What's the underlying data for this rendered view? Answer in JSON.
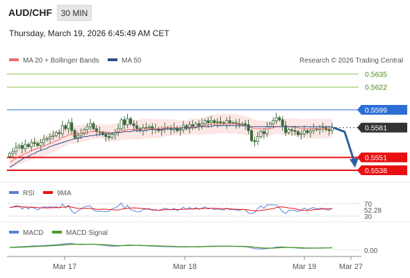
{
  "header": {
    "symbol": "AUD/CHF",
    "timeframe": "30 MIN",
    "datetime": "Thursday, March 19, 2026 6:45:49 AM CET"
  },
  "legend": {
    "ma20": "MA 20 + Bollinger Bands",
    "ma50": "MA 50",
    "rsi": "RSI",
    "rsi_ma": "9MA",
    "macd": "MACD",
    "macd_signal": "MACD Signal"
  },
  "copyright": "Research © 2026 Trading Central",
  "colors": {
    "ma20": "#f06a6a",
    "ma50": "#2c4f8a",
    "resistance_green": "#8bc34a",
    "pivot_blue": "#2d6ed6",
    "support_red": "#e81010",
    "last_price_bg": "#333333",
    "candle": "#3a6a3a",
    "rsi_line": "#5b7fd6",
    "macd_line": "#5b7fd6",
    "macd_signal_line": "#4a9a2a"
  },
  "chart_data": [
    {
      "type": "candlestick",
      "x_ticks": [
        "Mar 17",
        "Mar 18",
        "Mar 19",
        "Mar 27"
      ],
      "y_range": [
        0.553,
        0.5645
      ],
      "levels": [
        {
          "value": 0.5635,
          "label": "0.5635",
          "kind": "resistance"
        },
        {
          "value": 0.5622,
          "label": "0.5622",
          "kind": "resistance"
        },
        {
          "value": 0.5599,
          "label": "0.5599",
          "kind": "pivot"
        },
        {
          "value": 0.5581,
          "label": "0.5581",
          "kind": "last"
        },
        {
          "value": 0.5551,
          "label": "0.5551",
          "kind": "support"
        },
        {
          "value": 0.5538,
          "label": "0.5538",
          "kind": "support"
        }
      ],
      "close": [
        0.5555,
        0.5557,
        0.5561,
        0.5563,
        0.556,
        0.5564,
        0.5562,
        0.5566,
        0.5565,
        0.5563,
        0.5566,
        0.5569,
        0.557,
        0.5572,
        0.5573,
        0.5576,
        0.5575,
        0.5583,
        0.558,
        0.5586,
        0.5578,
        0.5571,
        0.5573,
        0.5575,
        0.5579,
        0.5582,
        0.5585,
        0.558,
        0.5577,
        0.5576,
        0.5574,
        0.5572,
        0.5571,
        0.5574,
        0.5576,
        0.558,
        0.5589,
        0.5584,
        0.559,
        0.5585,
        0.5583,
        0.558,
        0.5578,
        0.5581,
        0.5581,
        0.5582,
        0.5579,
        0.558,
        0.5578,
        0.5579,
        0.5581,
        0.558,
        0.5579,
        0.5581,
        0.5578,
        0.5579,
        0.5583,
        0.558,
        0.5584,
        0.5582,
        0.5585,
        0.5583,
        0.5585,
        0.5588,
        0.5586,
        0.5588,
        0.5586,
        0.5587,
        0.5586,
        0.5585,
        0.5588,
        0.5586,
        0.5586,
        0.5585,
        0.5584,
        0.5585,
        0.5584,
        0.5578,
        0.5568,
        0.5567,
        0.5572,
        0.5577,
        0.5575,
        0.5582,
        0.5585,
        0.5588,
        0.5591,
        0.5589,
        0.5583,
        0.5576,
        0.5579,
        0.5578,
        0.5577,
        0.5574,
        0.5575,
        0.5578,
        0.5576,
        0.5578,
        0.558,
        0.5579,
        0.558,
        0.5581,
        0.5579,
        0.5578,
        0.5581
      ],
      "ma20": [
        0.5546,
        0.5548,
        0.555,
        0.5552,
        0.5553,
        0.5555,
        0.5556,
        0.5558,
        0.5559,
        0.556,
        0.5561,
        0.5562,
        0.5564,
        0.5565,
        0.5566,
        0.5568,
        0.5569,
        0.5571,
        0.5572,
        0.5574,
        0.5574,
        0.5574,
        0.5575,
        0.5575,
        0.5576,
        0.5576,
        0.5577,
        0.5577,
        0.5577,
        0.5577,
        0.5577,
        0.5576,
        0.5576,
        0.5576,
        0.5576,
        0.5577,
        0.5578,
        0.5578,
        0.5579,
        0.5579,
        0.5579,
        0.5579,
        0.5579,
        0.558,
        0.558,
        0.558,
        0.558,
        0.558,
        0.558,
        0.558,
        0.5581,
        0.5581,
        0.5581,
        0.5581,
        0.5581,
        0.5581,
        0.5581,
        0.5581,
        0.5582,
        0.5582,
        0.5582,
        0.5582,
        0.5583,
        0.5583,
        0.5584,
        0.5584,
        0.5584,
        0.5585,
        0.5585,
        0.5585,
        0.5585,
        0.5585,
        0.5585,
        0.5585,
        0.5584,
        0.5584,
        0.5583,
        0.5582,
        0.5581,
        0.558,
        0.558,
        0.558,
        0.558,
        0.558,
        0.558,
        0.5581,
        0.5582,
        0.5582,
        0.5582,
        0.5582,
        0.5582,
        0.5582,
        0.5581,
        0.5581,
        0.558,
        0.558,
        0.558,
        0.558,
        0.558,
        0.558,
        0.558,
        0.558,
        0.558,
        0.558,
        0.558
      ],
      "ma50": [
        0.5541,
        0.5543,
        0.5545,
        0.5547,
        0.5549,
        0.5551,
        0.5552,
        0.5554,
        0.5555,
        0.5557,
        0.5558,
        0.5559,
        0.556,
        0.5562,
        0.5563,
        0.5564,
        0.5565,
        0.5566,
        0.5567,
        0.5568,
        0.5569,
        0.557,
        0.557,
        0.5571,
        0.5572,
        0.5572,
        0.5573,
        0.5573,
        0.5574,
        0.5574,
        0.5575,
        0.5575,
        0.5575,
        0.5575,
        0.5576,
        0.5576,
        0.5576,
        0.5577,
        0.5577,
        0.5577,
        0.5578,
        0.5578,
        0.5578,
        0.5578,
        0.5578,
        0.5579,
        0.5579,
        0.5579,
        0.5579,
        0.5579,
        0.558,
        0.558,
        0.558,
        0.558,
        0.558,
        0.558,
        0.5581,
        0.5581,
        0.5581,
        0.5581,
        0.5581,
        0.5582,
        0.5582,
        0.5582,
        0.5582,
        0.5582,
        0.5583,
        0.5583,
        0.5583,
        0.5583,
        0.5583,
        0.5583,
        0.5583,
        0.5583,
        0.5583,
        0.5583,
        0.5583,
        0.5582,
        0.5582,
        0.5582,
        0.5582,
        0.5582,
        0.5582,
        0.5582,
        0.5582,
        0.5582,
        0.5582,
        0.5582,
        0.5582,
        0.5582,
        0.5582,
        0.5582,
        0.5582,
        0.5582,
        0.5582,
        0.5582,
        0.5582,
        0.5582,
        0.5582,
        0.5582,
        0.5582,
        0.5582,
        0.5582,
        0.5582,
        0.5582
      ],
      "forecast_arrow": {
        "from": 0.5581,
        "to": 0.5542
      }
    },
    {
      "type": "line",
      "name": "RSI",
      "y_ticks": [
        70,
        30
      ],
      "last_value": "52.28",
      "y_range": [
        25,
        75
      ]
    },
    {
      "type": "line",
      "name": "MACD",
      "last_value": "0.00"
    }
  ]
}
